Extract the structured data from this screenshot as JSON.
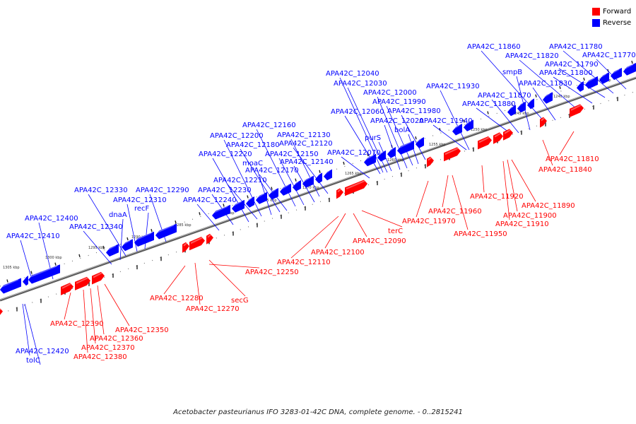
{
  "legend": {
    "forward_label": "Forward",
    "reverse_label": "Reverse",
    "forward_color": "#ff0000",
    "reverse_color": "#0000ff"
  },
  "caption": "Acetobacter pasteurianus IFO 3283-01-42C DNA, complete genome. - 0..2815241",
  "scale": {
    "unit": "kbp",
    "direction": "decreasing left to right",
    "ticks": [
      "1305 kbp",
      "1300 kbp",
      "1295 kbp",
      "1290 kbp",
      "1285 kbp",
      "1280 kbp",
      "1275 kbp",
      "1270 kbp",
      "1265 kbp",
      "1260 kbp",
      "1255 kbp",
      "1250 kbp",
      "1245 kbp",
      "1240 kbp",
      "1235 kbp"
    ]
  },
  "reverse_genes": [
    "APA42C_12420",
    "tolC",
    "APA42C_12410",
    "APA42C_12400",
    "APA42C_12340",
    "dnaA",
    "APA42C_12330",
    "APA42C_12310",
    "recF",
    "APA42C_12290",
    "APA42C_12240",
    "APA42C_12230",
    "APA42C_12220",
    "APA42C_12210",
    "APA42C_12200",
    "moaC",
    "APA42C_12180",
    "APA42C_12170",
    "APA42C_12160",
    "APA42C_12150",
    "APA42C_12140",
    "APA42C_12130",
    "APA42C_12120",
    "APA42C_12070",
    "APA42C_12060",
    "APA42C_12040",
    "APA42C_12030",
    "purS",
    "APA42C_12020",
    "APA42C_12000",
    "APA42C_11990",
    "bolA",
    "APA42C_11980",
    "APA42C_11940",
    "APA42C_11930",
    "APA42C_11880",
    "APA42C_11870",
    "smpB",
    "APA42C_11860",
    "APA42C_11830",
    "APA42C_11820",
    "APA42C_11800",
    "APA42C_11790",
    "APA42C_11780",
    "APA42C_11770"
  ],
  "forward_genes": [
    "APA42C_12390",
    "APA42C_12380",
    "APA42C_12370",
    "APA42C_12360",
    "APA42C_12350",
    "APA42C_12280",
    "APA42C_12270",
    "secG",
    "APA42C_12250",
    "APA42C_12110",
    "APA42C_12100",
    "APA42C_12090",
    "terC",
    "APA42C_11970",
    "APA42C_11960",
    "APA42C_11950",
    "APA42C_11920",
    "APA42C_11910",
    "APA42C_11900",
    "APA42C_11890",
    "APA42C_11840",
    "APA42C_11810"
  ]
}
